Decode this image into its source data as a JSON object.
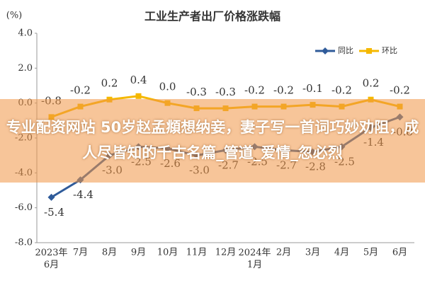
{
  "chart_data": {
    "type": "line",
    "title": "工业生产者出厂价格涨跌幅",
    "y_label": "(%)",
    "categories": [
      "2023年6月",
      "7月",
      "8月",
      "9月",
      "10月",
      "11月",
      "12月",
      "2024年1月",
      "2月",
      "3月",
      "4月",
      "5月",
      "6月"
    ],
    "series": [
      {
        "name": "同比",
        "color": "#2f5b9a",
        "marker": "diamond",
        "values": [
          -5.4,
          -4.4,
          -3.0,
          -2.5,
          -2.6,
          -3.0,
          -2.7,
          -2.5,
          -2.7,
          -2.8,
          -2.5,
          -1.4,
          -0.8
        ],
        "value_labels": [
          "-5.4",
          "-4.4",
          "-3.0",
          "-2.5",
          "-2.6",
          "-3.0",
          "-2.7",
          "-2.5",
          "-2.7",
          "-2.8",
          "-2.5",
          "-1.4",
          "-0.8"
        ]
      },
      {
        "name": "环比",
        "color": "#f5b800",
        "marker": "square",
        "values": [
          -0.8,
          -0.2,
          0.2,
          0.4,
          0.0,
          -0.3,
          -0.3,
          -0.2,
          -0.2,
          -0.1,
          -0.2,
          0.2,
          -0.2
        ],
        "value_labels": [
          "-0.8",
          "-0.2",
          "0.2",
          "0.4",
          "0.0",
          "-0.3",
          "-0.3",
          "-0.2",
          "-0.2",
          "-0.1",
          "-0.2",
          "0.2",
          "-0.2"
        ]
      }
    ],
    "ylim": [
      -8,
      4
    ],
    "yticks": [
      {
        "value": -8,
        "label": "-8.0"
      },
      {
        "value": -6,
        "label": "-6.0"
      },
      {
        "value": -4,
        "label": "-4.0"
      },
      {
        "value": -2,
        "label": "-2.0"
      },
      {
        "value": 0,
        "label": "0.0"
      },
      {
        "value": 2,
        "label": "2.0"
      },
      {
        "value": 4,
        "label": "4.0"
      }
    ],
    "grid": false,
    "legend": "top-right"
  },
  "banner": {
    "text": "专业配资网站 50岁赵孟頫想纳妾，妻子写一首词巧妙劝阻，成人尽皆知的千古名篇_管道_爱情_忽必烈"
  }
}
